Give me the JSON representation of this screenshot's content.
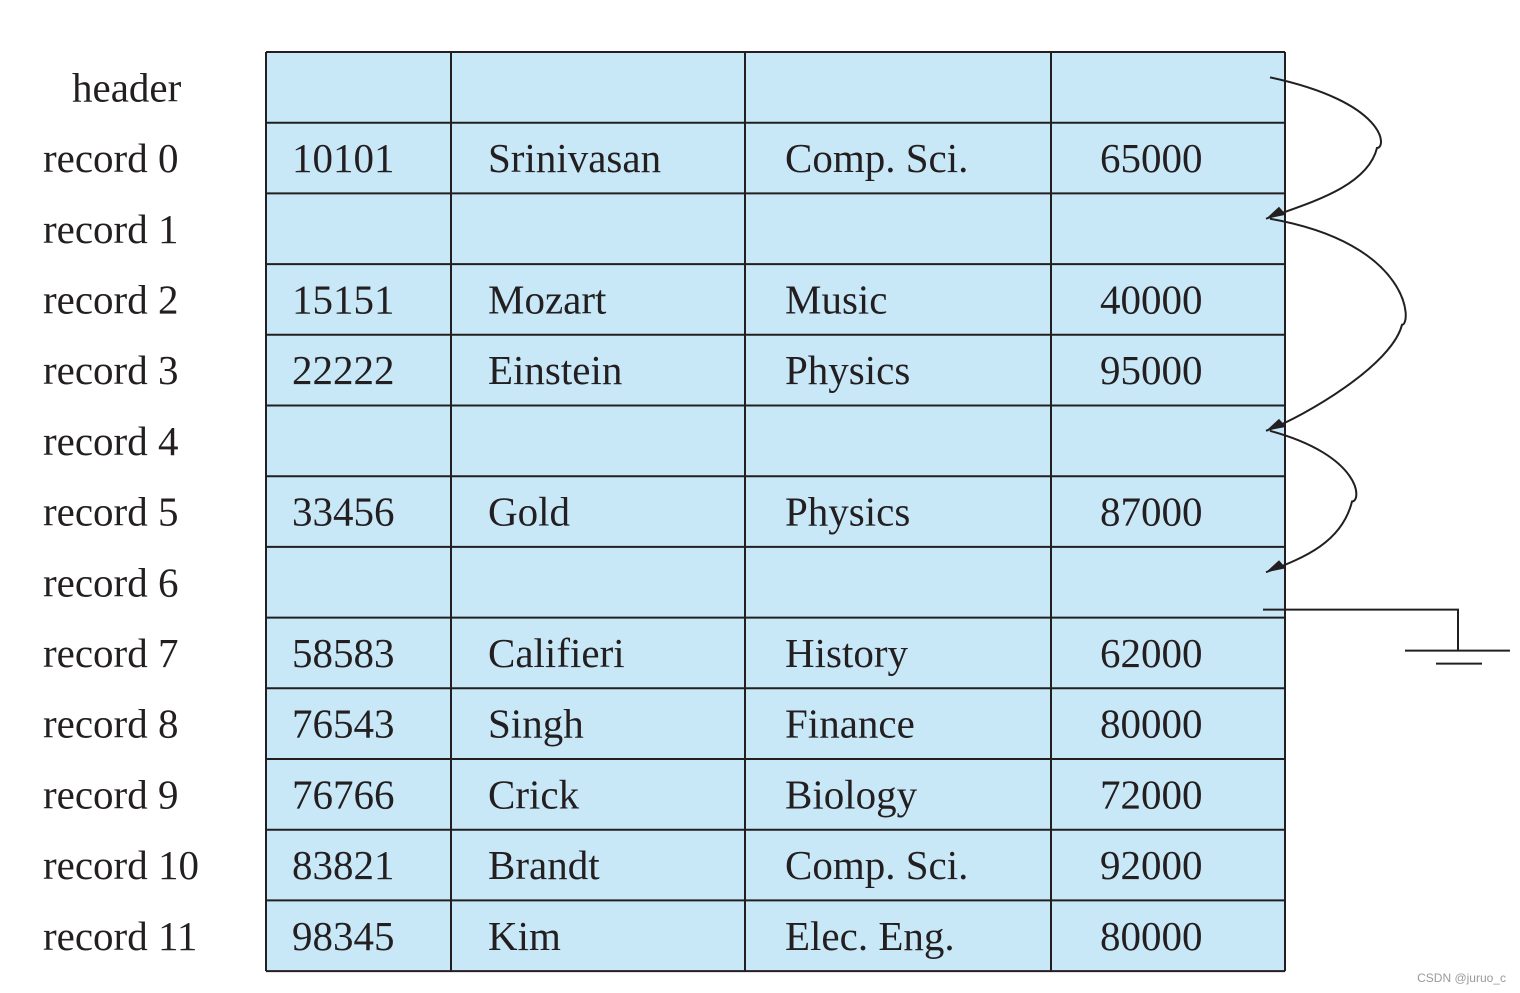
{
  "colors": {
    "cell_fill": "#c8e8f8",
    "line": "#231f20",
    "text": "#231f20"
  },
  "header_label": "header",
  "records": [
    {
      "label": "record 0",
      "id": "10101",
      "name": "Srinivasan",
      "dept": "Comp. Sci.",
      "salary": "65000"
    },
    {
      "label": "record 1",
      "id": "",
      "name": "",
      "dept": "",
      "salary": ""
    },
    {
      "label": "record 2",
      "id": "15151",
      "name": "Mozart",
      "dept": "Music",
      "salary": "40000"
    },
    {
      "label": "record 3",
      "id": "22222",
      "name": "Einstein",
      "dept": "Physics",
      "salary": "95000"
    },
    {
      "label": "record 4",
      "id": "",
      "name": "",
      "dept": "",
      "salary": ""
    },
    {
      "label": "record 5",
      "id": "33456",
      "name": "Gold",
      "dept": "Physics",
      "salary": "87000"
    },
    {
      "label": "record 6",
      "id": "",
      "name": "",
      "dept": "",
      "salary": ""
    },
    {
      "label": "record 7",
      "id": "58583",
      "name": "Califieri",
      "dept": "History",
      "salary": "62000"
    },
    {
      "label": "record 8",
      "id": "76543",
      "name": "Singh",
      "dept": "Finance",
      "salary": "80000"
    },
    {
      "label": "record 9",
      "id": "76766",
      "name": "Crick",
      "dept": "Biology",
      "salary": "72000"
    },
    {
      "label": "record 10",
      "id": "83821",
      "name": "Brandt",
      "dept": "Comp. Sci.",
      "salary": "92000"
    },
    {
      "label": "record 11",
      "id": "98345",
      "name": "Kim",
      "dept": "Elec. Eng.",
      "salary": "80000"
    }
  ],
  "free_list": {
    "links": [
      {
        "from": "header",
        "to": "record 1"
      },
      {
        "from": "record 1",
        "to": "record 4"
      },
      {
        "from": "record 4",
        "to": "record 6"
      }
    ],
    "terminator": "null-ground"
  },
  "watermark": "CSDN @juruo_c"
}
